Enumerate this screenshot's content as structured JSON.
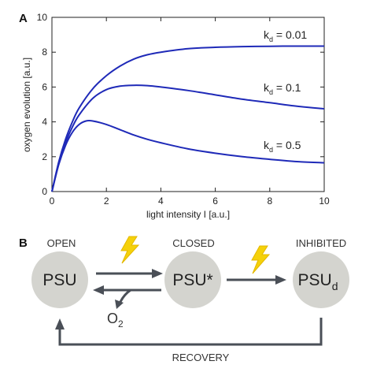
{
  "panel_a": {
    "label": "A"
  },
  "panel_b": {
    "label": "B",
    "states": [
      {
        "caption": "OPEN",
        "name": "PSU",
        "subscript": ""
      },
      {
        "caption": "CLOSED",
        "name": "PSU*",
        "subscript": ""
      },
      {
        "caption": "INHIBITED",
        "name": "PSU",
        "subscript": "d"
      }
    ],
    "product": {
      "text": "O",
      "subscript": "2"
    },
    "recovery_label": "RECOVERY",
    "colors": {
      "node": "#d4d4cf",
      "arrow": "#4a4f57",
      "lightning": "#f5d10a"
    }
  },
  "chart_data": {
    "type": "line",
    "xlabel": "light intensity I [a.u.]",
    "ylabel": "oxygen evolution [a.u.]",
    "xlim": [
      0,
      10
    ],
    "ylim": [
      0,
      10
    ],
    "xticks": [
      0,
      2,
      4,
      6,
      8,
      10
    ],
    "yticks": [
      0,
      2,
      4,
      6,
      8,
      10
    ],
    "grid": false,
    "line_color": "#1f2ab8",
    "series": [
      {
        "name": "k_d = 0.01",
        "label_text": "k",
        "label_sub": "d",
        "label_value": " = 0.01",
        "x": [
          0,
          0.25,
          0.5,
          0.75,
          1,
          1.5,
          2,
          2.5,
          3,
          3.5,
          4,
          5,
          6,
          7,
          8,
          9,
          10
        ],
        "y": [
          0,
          1.7,
          3.0,
          4.0,
          4.8,
          5.9,
          6.65,
          7.2,
          7.6,
          7.85,
          8.0,
          8.2,
          8.28,
          8.32,
          8.34,
          8.35,
          8.35
        ]
      },
      {
        "name": "k_d = 0.1",
        "label_text": "k",
        "label_sub": "d",
        "label_value": " = 0.1",
        "x": [
          0,
          0.25,
          0.5,
          0.75,
          1,
          1.5,
          2,
          2.5,
          3,
          3.5,
          4,
          5,
          6,
          7,
          8,
          9,
          10
        ],
        "y": [
          0,
          1.6,
          2.8,
          3.7,
          4.4,
          5.35,
          5.85,
          6.05,
          6.1,
          6.08,
          6.0,
          5.8,
          5.55,
          5.3,
          5.1,
          4.9,
          4.75
        ]
      },
      {
        "name": "k_d = 0.5",
        "label_text": "k",
        "label_sub": "d",
        "label_value": " = 0.5",
        "x": [
          0,
          0.25,
          0.5,
          0.75,
          1,
          1.25,
          1.5,
          2,
          2.5,
          3,
          3.5,
          4,
          5,
          6,
          7,
          8,
          9,
          10
        ],
        "y": [
          0,
          1.55,
          2.65,
          3.4,
          3.85,
          4.05,
          4.05,
          3.85,
          3.55,
          3.25,
          3.0,
          2.8,
          2.45,
          2.2,
          2.0,
          1.85,
          1.72,
          1.65
        ]
      }
    ]
  }
}
